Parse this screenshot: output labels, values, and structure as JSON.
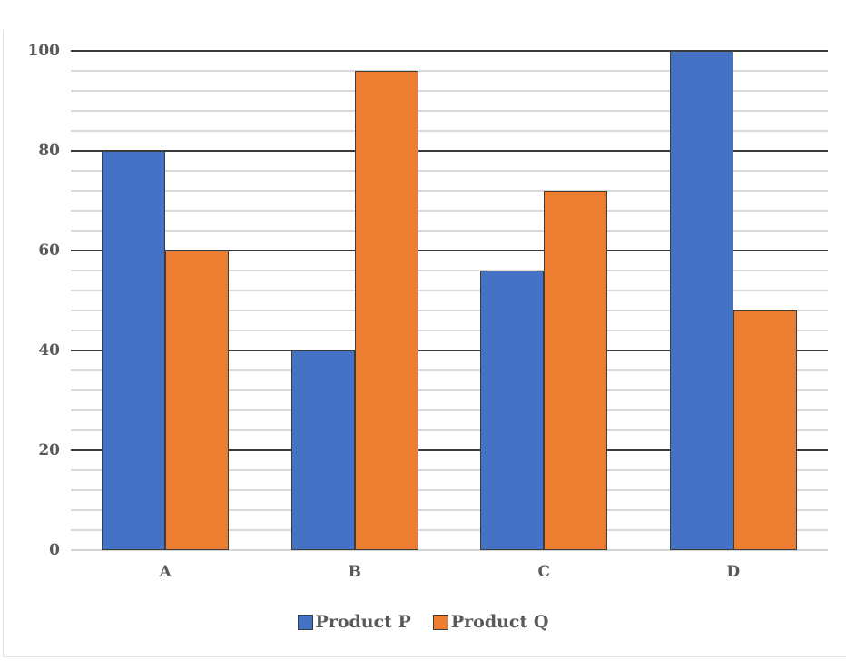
{
  "chart_data": {
    "type": "bar",
    "title": "",
    "xlabel": "",
    "ylabel": "",
    "categories": [
      "A",
      "B",
      "C",
      "D"
    ],
    "series": [
      {
        "name": "Product P",
        "color": "#4472c4",
        "values": [
          80,
          40,
          56,
          100
        ]
      },
      {
        "name": "Product Q",
        "color": "#ed7d31",
        "values": [
          60,
          96,
          72,
          48
        ]
      }
    ],
    "ylim": [
      0,
      100
    ],
    "yticks": [
      "0",
      "20",
      "40",
      "60",
      "80",
      "100"
    ],
    "major_step": 20,
    "minor_step": 4,
    "grid": true,
    "legend_position": "bottom"
  },
  "legend": {
    "items": [
      {
        "label": "Product P",
        "color": "#4472c4"
      },
      {
        "label": "Product Q",
        "color": "#ed7d31"
      }
    ]
  },
  "x_axis": {
    "labels": [
      "A",
      "B",
      "C",
      "D"
    ]
  },
  "y_axis": {
    "labels": [
      "0",
      "20",
      "40",
      "60",
      "80",
      "100"
    ]
  }
}
